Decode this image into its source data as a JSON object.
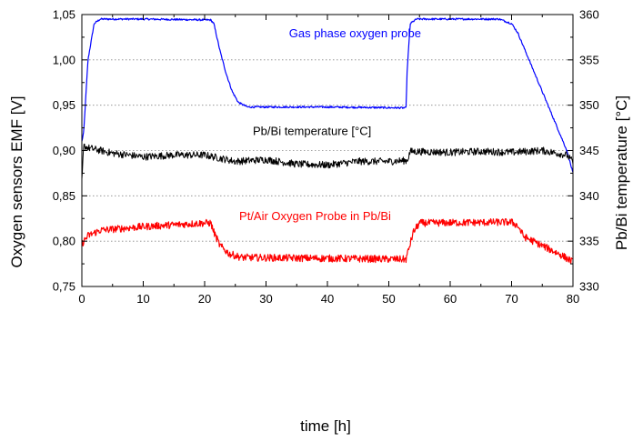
{
  "chart_data": {
    "type": "line",
    "xlabel": "time [h]",
    "ylabel_left": "Oxygen sensors EMF [V]",
    "ylabel_right": "Pb/Bi temperature [°C]",
    "xlim": [
      0,
      80
    ],
    "ylim_left": [
      0.75,
      1.05
    ],
    "ylim_right": [
      330,
      360
    ],
    "x_ticks": [
      "0",
      "10",
      "20",
      "30",
      "40",
      "50",
      "60",
      "70",
      "80"
    ],
    "y_ticks_left": [
      "0,75",
      "0,80",
      "0,85",
      "0,90",
      "0,95",
      "1,00",
      "1,05"
    ],
    "y_ticks_right": [
      "330",
      "335",
      "340",
      "345",
      "350",
      "355",
      "360"
    ],
    "grid": "horizontal dotted",
    "series": [
      {
        "name": "Gas phase oxygen probe",
        "axis": "left",
        "color": "#0000ff",
        "noise": 0.001,
        "points": [
          [
            0,
            0.91
          ],
          [
            0.3,
            0.92
          ],
          [
            1,
            1.0
          ],
          [
            2,
            1.04
          ],
          [
            3,
            1.045
          ],
          [
            10,
            1.045
          ],
          [
            21,
            1.044
          ],
          [
            21.5,
            1.04
          ],
          [
            22.5,
            1.01
          ],
          [
            23.5,
            0.985
          ],
          [
            24.5,
            0.965
          ],
          [
            25.5,
            0.953
          ],
          [
            27,
            0.948
          ],
          [
            40,
            0.948
          ],
          [
            52.8,
            0.947
          ],
          [
            53,
            0.99
          ],
          [
            53.5,
            1.04
          ],
          [
            54.5,
            1.045
          ],
          [
            68,
            1.045
          ],
          [
            70,
            1.04
          ],
          [
            71,
            1.03
          ],
          [
            79,
            0.9
          ],
          [
            80,
            0.875
          ]
        ]
      },
      {
        "name": "Pb/Bi temperature [°C]",
        "axis": "right",
        "color": "#000000",
        "noise": 0.4,
        "points": [
          [
            0,
            341.5
          ],
          [
            0.3,
            345.5
          ],
          [
            1,
            345.3
          ],
          [
            5,
            344.7
          ],
          [
            10,
            344.3
          ],
          [
            15,
            344.5
          ],
          [
            20,
            344.5
          ],
          [
            25,
            343.8
          ],
          [
            30,
            344.0
          ],
          [
            35,
            343.5
          ],
          [
            40,
            343.4
          ],
          [
            45,
            343.8
          ],
          [
            50,
            343.8
          ],
          [
            53,
            343.9
          ],
          [
            53.5,
            344.9
          ],
          [
            60,
            344.8
          ],
          [
            65,
            344.9
          ],
          [
            70,
            344.8
          ],
          [
            75,
            345.0
          ],
          [
            79,
            344.5
          ],
          [
            80,
            343.7
          ]
        ]
      },
      {
        "name": "Pt/Air Oxygen Probe in Pb/Bi",
        "axis": "left",
        "color": "#ff0000",
        "noise": 0.004,
        "points": [
          [
            0,
            0.797
          ],
          [
            1,
            0.806
          ],
          [
            3,
            0.812
          ],
          [
            10,
            0.816
          ],
          [
            20,
            0.82
          ],
          [
            21,
            0.82
          ],
          [
            21.5,
            0.81
          ],
          [
            22.5,
            0.795
          ],
          [
            24,
            0.786
          ],
          [
            26,
            0.782
          ],
          [
            40,
            0.781
          ],
          [
            52.8,
            0.78
          ],
          [
            53,
            0.785
          ],
          [
            54,
            0.81
          ],
          [
            55,
            0.82
          ],
          [
            70,
            0.821
          ],
          [
            71,
            0.817
          ],
          [
            72,
            0.805
          ],
          [
            75,
            0.795
          ],
          [
            78,
            0.785
          ],
          [
            80,
            0.777
          ]
        ]
      }
    ],
    "annotations": [
      {
        "text": "Gas phase oxygen probe",
        "color": "#0000ff",
        "x": 44.5,
        "y": 1.025
      },
      {
        "text": "Pb/Bi temperature [°C]",
        "color": "#000000",
        "x": 37.5,
        "y": 0.917
      },
      {
        "text": "Pt/Air Oxygen Probe in Pb/Bi",
        "color": "#ff0000",
        "x": 38,
        "y": 0.823
      }
    ]
  }
}
